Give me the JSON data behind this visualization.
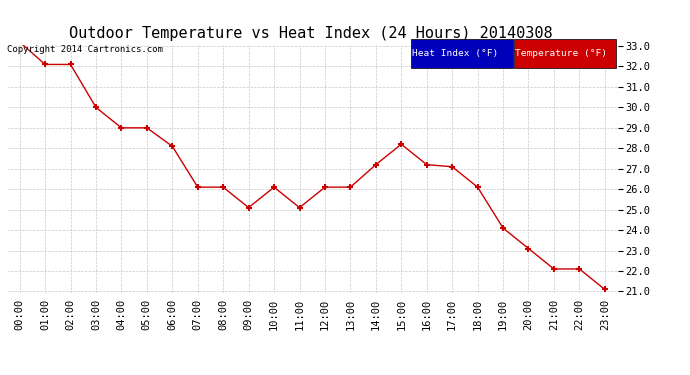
{
  "title": "Outdoor Temperature vs Heat Index (24 Hours) 20140308",
  "copyright": "Copyright 2014 Cartronics.com",
  "x_labels": [
    "00:00",
    "01:00",
    "02:00",
    "03:00",
    "04:00",
    "05:00",
    "06:00",
    "07:00",
    "08:00",
    "09:00",
    "10:00",
    "11:00",
    "12:00",
    "13:00",
    "14:00",
    "15:00",
    "16:00",
    "17:00",
    "18:00",
    "19:00",
    "20:00",
    "21:00",
    "22:00",
    "23:00"
  ],
  "temperature": [
    33.2,
    32.1,
    32.1,
    30.0,
    29.0,
    29.0,
    28.1,
    26.1,
    26.1,
    25.1,
    26.1,
    25.1,
    26.1,
    26.1,
    27.2,
    28.2,
    27.2,
    27.1,
    26.1,
    24.1,
    23.1,
    22.1,
    22.1,
    21.1
  ],
  "ylim": [
    21.0,
    33.0
  ],
  "yticks": [
    21.0,
    22.0,
    23.0,
    24.0,
    25.0,
    26.0,
    27.0,
    28.0,
    29.0,
    30.0,
    31.0,
    32.0,
    33.0
  ],
  "line_color": "#cc0000",
  "marker": "+",
  "bg_color": "#ffffff",
  "plot_bg_color": "#ffffff",
  "grid_color": "#c8c8c8",
  "legend_heat_bg": "#0000bb",
  "legend_temp_bg": "#cc0000",
  "legend_text_color": "#ffffff",
  "title_fontsize": 11,
  "tick_fontsize": 7.5,
  "copyright_fontsize": 6.5
}
